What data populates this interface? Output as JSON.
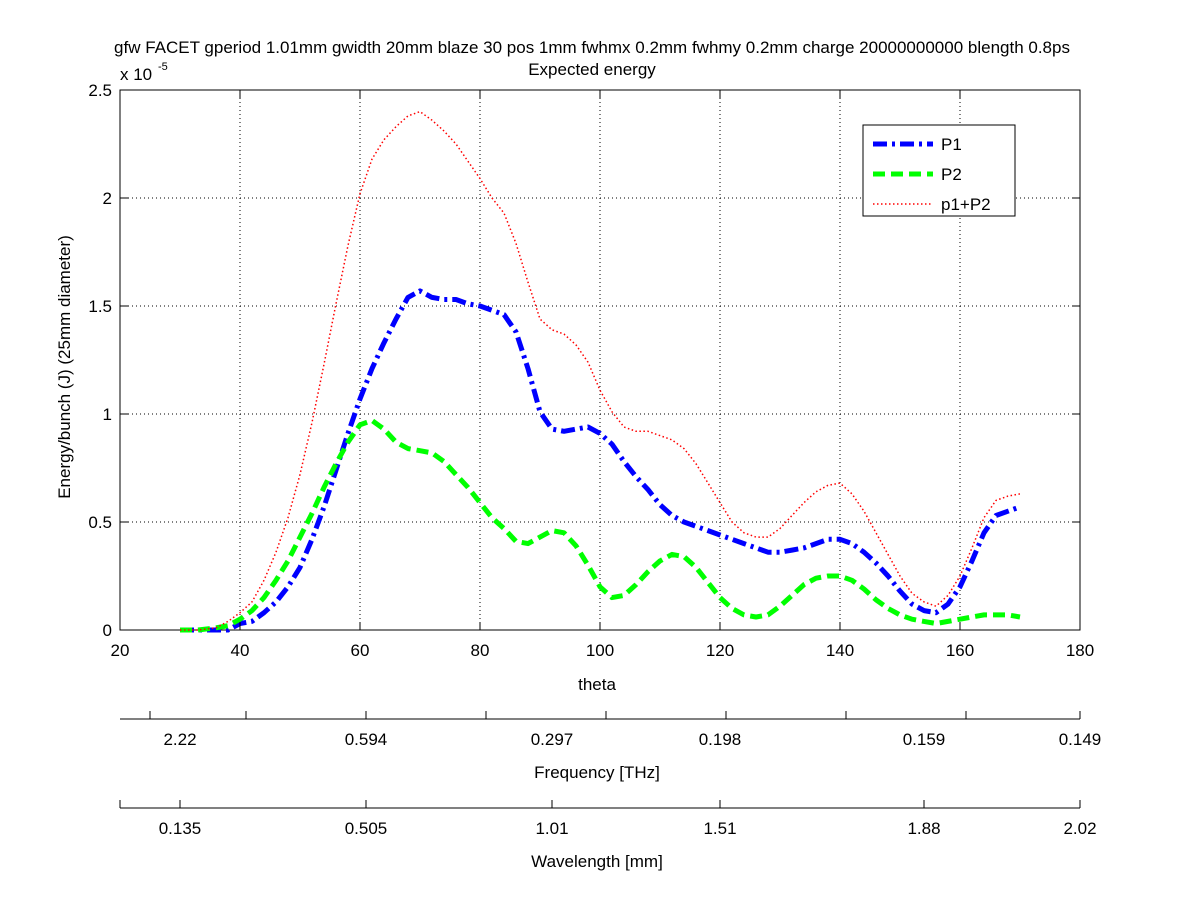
{
  "chart_data": {
    "type": "line",
    "title_line1": "gfw FACET gperiod 1.01mm gwidth 20mm blaze 30 pos 1mm fwhmx 0.2mm fwhmy 0.2mm charge 20000000000 blength 0.8ps",
    "title_line2": "Expected energy",
    "xlabel": "theta",
    "ylabel": "Energy/bunch (J) (25mm diameter)",
    "y_exponent_label": "x 10",
    "y_exponent_power": "-5",
    "xlim": [
      20,
      180
    ],
    "ylim": [
      0,
      2.5e-05
    ],
    "x_ticks": [
      20,
      40,
      60,
      80,
      100,
      120,
      140,
      160,
      180
    ],
    "y_ticks": [
      0,
      0.5,
      1,
      1.5,
      2,
      2.5
    ],
    "y_tick_labels": [
      "0",
      "0.5",
      "1",
      "1.5",
      "2",
      "2.5"
    ],
    "grid": true,
    "legend_position": "top-right",
    "series": [
      {
        "name": "P1",
        "color": "#0000ff",
        "style": "dashdot",
        "x": [
          30,
          33,
          36,
          38,
          40,
          42,
          44,
          46,
          48,
          50,
          52,
          54,
          56,
          58,
          60,
          62,
          64,
          66,
          68,
          70,
          72,
          74,
          76,
          78,
          80,
          82,
          84,
          86,
          88,
          90,
          92,
          94,
          96,
          98,
          100,
          102,
          104,
          106,
          108,
          110,
          112,
          114,
          116,
          118,
          120,
          122,
          124,
          126,
          128,
          130,
          132,
          134,
          136,
          138,
          140,
          142,
          144,
          146,
          148,
          150,
          152,
          154,
          156,
          158,
          160,
          162,
          164,
          166,
          168,
          170
        ],
        "values": [
          0.0,
          0.0,
          0.0,
          0.0,
          3e-07,
          4e-07,
          8e-07,
          1.3e-06,
          2e-06,
          2.9e-06,
          4.2e-06,
          5.7e-06,
          7.4e-06,
          9.1e-06,
          1.07e-05,
          1.21e-05,
          1.33e-05,
          1.44e-05,
          1.54e-05,
          1.57e-05,
          1.54e-05,
          1.53e-05,
          1.53e-05,
          1.51e-05,
          1.5e-05,
          1.48e-05,
          1.46e-05,
          1.38e-05,
          1.21e-05,
          1.01e-05,
          9.3e-06,
          9.2e-06,
          9.3e-06,
          9.4e-06,
          9.1e-06,
          8.6e-06,
          7.8e-06,
          7.1e-06,
          6.5e-06,
          5.8e-06,
          5.3e-06,
          5e-06,
          4.8e-06,
          4.6e-06,
          4.4e-06,
          4.2e-06,
          4e-06,
          3.8e-06,
          3.6e-06,
          3.6e-06,
          3.7e-06,
          3.8e-06,
          4e-06,
          4.2e-06,
          4.2e-06,
          4e-06,
          3.6e-06,
          3.1e-06,
          2.5e-06,
          1.8e-06,
          1.2e-06,
          9e-07,
          8e-07,
          1.2e-06,
          2e-06,
          3.2e-06,
          4.5e-06,
          5.3e-06,
          5.5e-06,
          5.7e-06
        ]
      },
      {
        "name": "P2",
        "color": "#00ff00",
        "style": "dashed",
        "x": [
          30,
          33,
          36,
          38,
          40,
          42,
          44,
          46,
          48,
          50,
          52,
          54,
          56,
          58,
          60,
          62,
          64,
          66,
          68,
          70,
          72,
          74,
          76,
          78,
          80,
          82,
          84,
          86,
          88,
          90,
          92,
          94,
          96,
          98,
          100,
          102,
          104,
          106,
          108,
          110,
          112,
          114,
          116,
          118,
          120,
          122,
          124,
          126,
          128,
          130,
          132,
          134,
          136,
          138,
          140,
          142,
          144,
          146,
          148,
          150,
          152,
          154,
          156,
          158,
          160,
          162,
          164,
          166,
          168,
          170
        ],
        "values": [
          0.0,
          0.0,
          1e-07,
          2e-07,
          5e-07,
          9e-07,
          1.5e-06,
          2.3e-06,
          3.2e-06,
          4.3e-06,
          5.4e-06,
          6.6e-06,
          7.7e-06,
          8.7e-06,
          9.5e-06,
          9.7e-06,
          9.3e-06,
          8.7e-06,
          8.4e-06,
          8.3e-06,
          8.2e-06,
          7.8e-06,
          7.2e-06,
          6.6e-06,
          5.9e-06,
          5.2e-06,
          4.7e-06,
          4.1e-06,
          4e-06,
          4.3e-06,
          4.6e-06,
          4.5e-06,
          3.9e-06,
          3e-06,
          2e-06,
          1.5e-06,
          1.6e-06,
          2.1e-06,
          2.7e-06,
          3.2e-06,
          3.5e-06,
          3.4e-06,
          2.9e-06,
          2.2e-06,
          1.5e-06,
          1e-06,
          7e-07,
          6e-07,
          7e-07,
          1.1e-06,
          1.6e-06,
          2.1e-06,
          2.4e-06,
          2.5e-06,
          2.5e-06,
          2.3e-06,
          1.9e-06,
          1.4e-06,
          1e-06,
          7e-07,
          5e-07,
          4e-07,
          3e-07,
          4e-07,
          5e-07,
          6e-07,
          7e-07,
          7e-07,
          7e-07,
          6e-07
        ]
      },
      {
        "name": "p1+P2",
        "color": "#ff0000",
        "style": "dotted",
        "x": [
          30,
          33,
          36,
          38,
          40,
          42,
          44,
          46,
          48,
          50,
          52,
          54,
          56,
          58,
          60,
          62,
          64,
          66,
          68,
          70,
          72,
          74,
          76,
          78,
          80,
          82,
          84,
          86,
          88,
          90,
          92,
          94,
          96,
          98,
          100,
          102,
          104,
          106,
          108,
          110,
          112,
          114,
          116,
          118,
          120,
          122,
          124,
          126,
          128,
          130,
          132,
          134,
          136,
          138,
          140,
          142,
          144,
          146,
          148,
          150,
          152,
          154,
          156,
          158,
          160,
          162,
          164,
          166,
          168,
          170
        ],
        "values": [
          0.0,
          0.0,
          1e-07,
          4e-07,
          8e-07,
          1.3e-06,
          2.3e-06,
          3.6e-06,
          5.2e-06,
          7.2e-06,
          9.6e-06,
          1.23e-05,
          1.51e-05,
          1.78e-05,
          2.02e-05,
          2.18e-05,
          2.27e-05,
          2.33e-05,
          2.38e-05,
          2.4e-05,
          2.36e-05,
          2.31e-05,
          2.25e-05,
          2.17e-05,
          2.09e-05,
          2e-05,
          1.93e-05,
          1.79e-05,
          1.61e-05,
          1.44e-05,
          1.39e-05,
          1.37e-05,
          1.32e-05,
          1.24e-05,
          1.11e-05,
          1.01e-05,
          9.4e-06,
          9.2e-06,
          9.2e-06,
          9e-06,
          8.8e-06,
          8.4e-06,
          7.7e-06,
          6.8e-06,
          5.9e-06,
          5e-06,
          4.5e-06,
          4.3e-06,
          4.3e-06,
          4.7e-06,
          5.3e-06,
          5.9e-06,
          6.4e-06,
          6.7e-06,
          6.8e-06,
          6.3e-06,
          5.5e-06,
          4.5e-06,
          3.5e-06,
          2.5e-06,
          1.7e-06,
          1.3e-06,
          1.1e-06,
          1.6e-06,
          2.5e-06,
          3.8e-06,
          5.2e-06,
          6e-06,
          6.2e-06,
          6.3e-06
        ]
      }
    ],
    "secondary_axes": [
      {
        "label": "Frequency [THz]",
        "ticks": [
          25,
          41,
          61,
          81,
          101,
          121,
          141,
          161,
          180
        ],
        "tick_labels": [
          "2.22",
          "0.594",
          "0.297",
          "0.198",
          "0.159",
          "0.149"
        ],
        "labeled_tick_positions": [
          30,
          61,
          92,
          120,
          154,
          180
        ]
      },
      {
        "label": "Wavelength [mm]",
        "ticks": [
          20,
          30,
          61,
          92,
          120,
          154,
          180
        ],
        "tick_labels": [
          "0.135",
          "0.505",
          "1.01",
          "1.51",
          "1.88",
          "2.02"
        ],
        "labeled_tick_positions": [
          30,
          61,
          92,
          120,
          154,
          180
        ]
      }
    ]
  }
}
